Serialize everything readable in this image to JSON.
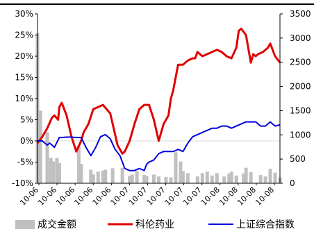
{
  "chart_data": {
    "type": "line",
    "legend_position": "bottom",
    "left_axis": {
      "min": -10,
      "max": 30,
      "step": 5,
      "ticks": [
        "-10%",
        "-5%",
        "0%",
        "5%",
        "10%",
        "15%",
        "20%",
        "25%",
        "30%"
      ]
    },
    "right_axis": {
      "min": 0,
      "max": 3500,
      "step": 500,
      "ticks": [
        "0",
        "500",
        "1000",
        "1500",
        "2000",
        "2500",
        "3000",
        "3500"
      ]
    },
    "x_tick_labels": [
      "10-06",
      "10-06",
      "10-06",
      "10-06",
      "10-06",
      "10-07",
      "10-07",
      "10-07",
      "10-07",
      "10-07",
      "10-08",
      "10-08",
      "10-08",
      "10-08"
    ],
    "series": [
      {
        "name": "成交金额",
        "kind": "bar",
        "axis": "right",
        "color": "#c0c0c0",
        "x": [
          0,
          0.012,
          0.04,
          0.055,
          0.065,
          0.08,
          0.09,
          0.17,
          0.18,
          0.22,
          0.23,
          0.25,
          0.27,
          0.28,
          0.31,
          0.35,
          0.38,
          0.39,
          0.41,
          0.44,
          0.45,
          0.48,
          0.5,
          0.53,
          0.55,
          0.57,
          0.59,
          0.6,
          0.62,
          0.66,
          0.68,
          0.7,
          0.72,
          0.74,
          0.77,
          0.79,
          0.8,
          0.82,
          0.85,
          0.86,
          0.88,
          0.92,
          0.94,
          0.96,
          0.98,
          1.0
        ],
        "values": [
          3100,
          1500,
          1050,
          520,
          450,
          520,
          420,
          780,
          400,
          280,
          180,
          240,
          260,
          280,
          310,
          320,
          150,
          180,
          250,
          170,
          150,
          180,
          140,
          130,
          120,
          640,
          450,
          250,
          210,
          140,
          210,
          240,
          160,
          210,
          140,
          200,
          240,
          160,
          200,
          320,
          230,
          170,
          140,
          300,
          220,
          120
        ]
      },
      {
        "name": "科伦药业",
        "kind": "line",
        "axis": "left",
        "color": "#e00000",
        "x": [
          0,
          0.02,
          0.04,
          0.06,
          0.07,
          0.085,
          0.09,
          0.1,
          0.12,
          0.14,
          0.16,
          0.18,
          0.19,
          0.21,
          0.23,
          0.25,
          0.27,
          0.3,
          0.33,
          0.35,
          0.36,
          0.38,
          0.4,
          0.42,
          0.44,
          0.46,
          0.48,
          0.5,
          0.52,
          0.54,
          0.55,
          0.56,
          0.58,
          0.6,
          0.62,
          0.64,
          0.65,
          0.66,
          0.68,
          0.7,
          0.72,
          0.74,
          0.76,
          0.78,
          0.8,
          0.82,
          0.83,
          0.84,
          0.86,
          0.88,
          0.89,
          0.9,
          0.91,
          0.93,
          0.95,
          0.96,
          0.98,
          1.0
        ],
        "values": [
          -0.5,
          1,
          3,
          5.5,
          6,
          5,
          8,
          9,
          6,
          1,
          -2.5,
          0,
          2,
          4,
          7.5,
          8,
          8.5,
          6.5,
          -1,
          -3,
          -2.5,
          0,
          4,
          7.5,
          8.5,
          8.5,
          5,
          0,
          4,
          6,
          10,
          12,
          18,
          18,
          19,
          19.5,
          19.5,
          21,
          20,
          20.5,
          21,
          21.5,
          21,
          20,
          19.5,
          22,
          26,
          26.5,
          25,
          18.5,
          20.5,
          20,
          20.5,
          21,
          22,
          23,
          20,
          18.5
        ]
      },
      {
        "name": "上证综合指数",
        "kind": "line",
        "axis": "left",
        "color": "#0000dd",
        "x": [
          0,
          0.02,
          0.04,
          0.05,
          0.07,
          0.09,
          0.1,
          0.12,
          0.14,
          0.16,
          0.18,
          0.2,
          0.22,
          0.24,
          0.26,
          0.28,
          0.3,
          0.32,
          0.34,
          0.36,
          0.38,
          0.4,
          0.42,
          0.44,
          0.45,
          0.46,
          0.48,
          0.5,
          0.52,
          0.54,
          0.56,
          0.58,
          0.6,
          0.62,
          0.64,
          0.66,
          0.68,
          0.7,
          0.72,
          0.74,
          0.76,
          0.78,
          0.8,
          0.82,
          0.84,
          0.86,
          0.88,
          0.9,
          0.92,
          0.94,
          0.96,
          0.98,
          1.0
        ],
        "values": [
          0,
          0,
          -1,
          -0.5,
          -1.5,
          0.8,
          0.8,
          0.9,
          0.9,
          0.8,
          0.8,
          -1.5,
          -3.5,
          -1.5,
          1,
          1.5,
          0.5,
          -2,
          -3.5,
          -6.5,
          -7,
          -7,
          -6.5,
          -7,
          -5.5,
          -5,
          -4.5,
          -3,
          -2.5,
          -2.5,
          -2.5,
          -2,
          -2.5,
          -0.5,
          1,
          1.5,
          2,
          2.5,
          3,
          3,
          3.5,
          3.5,
          3,
          3.5,
          4,
          4.5,
          4.5,
          4.5,
          3.5,
          3.5,
          4.5,
          3.5,
          3.8
        ]
      }
    ]
  }
}
